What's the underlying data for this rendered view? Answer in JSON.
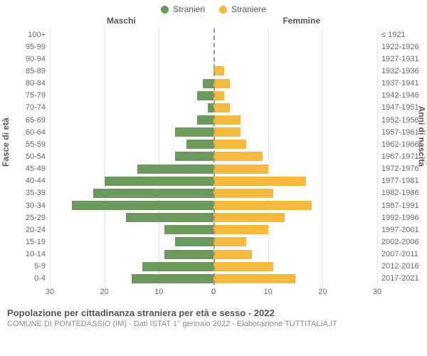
{
  "legend": {
    "male": {
      "label": "Stranieri",
      "color": "#6a9a5b"
    },
    "female": {
      "label": "Straniere",
      "color": "#f5b93d"
    }
  },
  "headers": {
    "left": "Maschi",
    "right": "Femmine"
  },
  "axis_titles": {
    "left": "Fasce di età",
    "right": "Anni di nascita"
  },
  "chart": {
    "type": "population-pyramid",
    "xmax": 30,
    "xticks_left": [
      30,
      20,
      10,
      0
    ],
    "xticks_right": [
      0,
      10,
      20,
      30
    ],
    "background_color": "#ffffff",
    "grid_color": "#e6e6e6",
    "center_axis_color": "#999999",
    "rows": [
      {
        "age": "100+",
        "birth": "≤ 1921",
        "m": 0,
        "f": 0
      },
      {
        "age": "95-99",
        "birth": "1922-1926",
        "m": 0,
        "f": 0
      },
      {
        "age": "90-94",
        "birth": "1927-1931",
        "m": 0,
        "f": 0
      },
      {
        "age": "85-89",
        "birth": "1932-1936",
        "m": 0,
        "f": 2
      },
      {
        "age": "80-84",
        "birth": "1937-1941",
        "m": 2,
        "f": 3
      },
      {
        "age": "75-79",
        "birth": "1942-1946",
        "m": 3,
        "f": 2
      },
      {
        "age": "70-74",
        "birth": "1947-1951",
        "m": 1,
        "f": 3
      },
      {
        "age": "65-69",
        "birth": "1952-1956",
        "m": 3,
        "f": 5
      },
      {
        "age": "60-64",
        "birth": "1957-1961",
        "m": 7,
        "f": 5
      },
      {
        "age": "55-59",
        "birth": "1962-1966",
        "m": 5,
        "f": 6
      },
      {
        "age": "50-54",
        "birth": "1967-1971",
        "m": 7,
        "f": 9
      },
      {
        "age": "45-49",
        "birth": "1972-1976",
        "m": 14,
        "f": 10
      },
      {
        "age": "40-44",
        "birth": "1977-1981",
        "m": 20,
        "f": 17
      },
      {
        "age": "35-39",
        "birth": "1982-1986",
        "m": 22,
        "f": 11
      },
      {
        "age": "30-34",
        "birth": "1987-1991",
        "m": 26,
        "f": 18
      },
      {
        "age": "25-29",
        "birth": "1992-1996",
        "m": 16,
        "f": 13
      },
      {
        "age": "20-24",
        "birth": "1997-2001",
        "m": 9,
        "f": 10
      },
      {
        "age": "15-19",
        "birth": "2002-2006",
        "m": 7,
        "f": 6
      },
      {
        "age": "10-14",
        "birth": "2007-2011",
        "m": 9,
        "f": 7
      },
      {
        "age": "5-9",
        "birth": "2012-2016",
        "m": 13,
        "f": 11
      },
      {
        "age": "0-4",
        "birth": "2017-2021",
        "m": 15,
        "f": 15
      }
    ]
  },
  "footer": {
    "title": "Popolazione per cittadinanza straniera per età e sesso - 2022",
    "subtitle": "COMUNE DI PONTEDASSIO (IM) - Dati ISTAT 1° gennaio 2022 - Elaborazione TUTTITALIA.IT"
  }
}
